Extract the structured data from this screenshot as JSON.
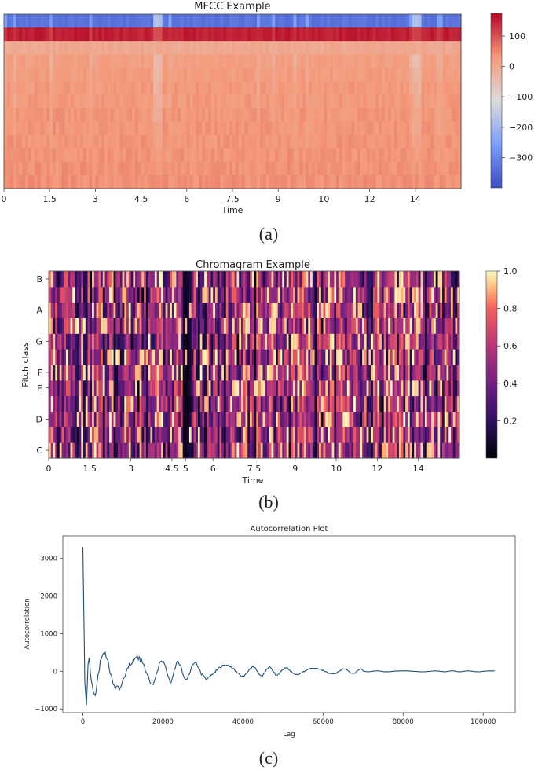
{
  "chart_data": [
    {
      "type": "heatmap",
      "panel": "a",
      "title": "MFCC Example",
      "xlabel": "Time",
      "ylabel": "",
      "xlim": [
        0,
        15
      ],
      "x_ticks": [
        "0",
        "1.5",
        "3",
        "4.5",
        "6",
        "7.5",
        "9",
        "10",
        "12",
        "14"
      ],
      "x_tick_values": [
        0,
        1.5,
        3,
        4.5,
        6,
        7.5,
        9,
        10.5,
        12,
        13.5
      ],
      "n_coefficients": 13,
      "row_mean_values": [
        40,
        38,
        36,
        35,
        34,
        33,
        30,
        28,
        25,
        20,
        0,
        150,
        -330
      ],
      "colorbar": {
        "range": [
          -400,
          175
        ],
        "ticks": [
          "100",
          "0",
          "−100",
          "−200",
          "−300"
        ],
        "tick_values": [
          100,
          0,
          -100,
          -200,
          -300
        ],
        "colormap": "coolwarm"
      },
      "caption": "(a)"
    },
    {
      "type": "heatmap",
      "panel": "b",
      "title": "Chromagram Example",
      "xlabel": "Time",
      "ylabel": "Pitch class",
      "xlim": [
        0,
        15
      ],
      "x_ticks": [
        "0",
        "1.5",
        "3",
        "4.5",
        "5",
        "6",
        "7.5",
        "9",
        "10",
        "12",
        "14"
      ],
      "x_tick_values": [
        0,
        1.5,
        3,
        4.5,
        5,
        6,
        7.5,
        9,
        10.5,
        12,
        13.5
      ],
      "y_ticks": [
        "C",
        "D",
        "E",
        "F",
        "G",
        "A",
        "B"
      ],
      "y_tick_values": [
        0,
        2,
        4,
        5,
        7,
        9,
        11
      ],
      "pitch_classes": 12,
      "value_range": [
        0,
        1
      ],
      "colorbar": {
        "range": [
          0,
          1
        ],
        "ticks": [
          "1.0",
          "0.8",
          "0.6",
          "0.4",
          "0.2"
        ],
        "tick_values": [
          1.0,
          0.8,
          0.6,
          0.4,
          0.2
        ],
        "colormap": "magma"
      },
      "caption": "(b)"
    },
    {
      "type": "line",
      "panel": "c",
      "title": "Autocorrelation Plot",
      "xlabel": "Lag",
      "ylabel": "Autocorrelation",
      "xlim": [
        -5000,
        108000
      ],
      "ylim": [
        -1100,
        3600
      ],
      "x_ticks": [
        "0",
        "20000",
        "40000",
        "60000",
        "80000",
        "100000"
      ],
      "x_tick_values": [
        0,
        20000,
        40000,
        60000,
        80000,
        100000
      ],
      "y_ticks": [
        "3000",
        "2000",
        "1000",
        "0",
        "−1000"
      ],
      "y_tick_values": [
        3000,
        2000,
        1000,
        0,
        -1000
      ],
      "series": [
        {
          "name": "autocorrelation",
          "color": "#1f4e79",
          "peak_lag": 0,
          "peak_value": 3300,
          "minimum_value": -900,
          "x_max": 103000,
          "damping_summary": "oscillation decays from about ±600 near lag 5000 to near 0 beyond lag 70000"
        }
      ],
      "caption": "(c)"
    }
  ]
}
